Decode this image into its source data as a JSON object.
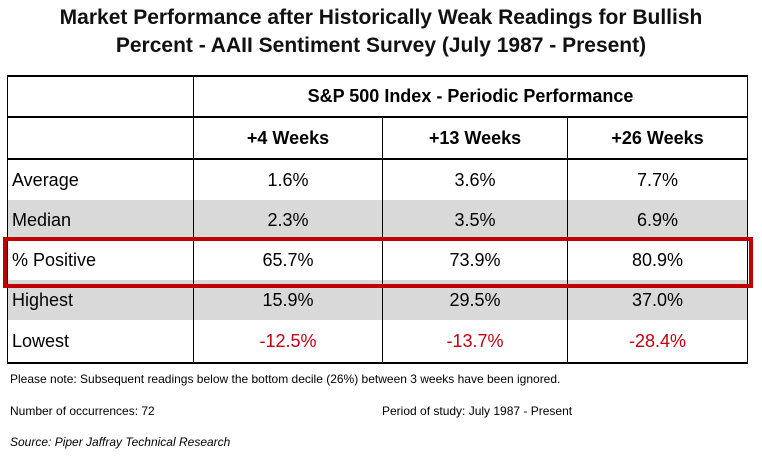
{
  "title": {
    "line1": "Market Performance after Historically Weak Readings for Bullish",
    "line2": "Percent - AAII Sentiment Survey (July 1987 - Present)"
  },
  "table": {
    "group_header": "S&P 500 Index - Periodic Performance",
    "columns": [
      "+4 Weeks",
      "+13 Weeks",
      "+26 Weeks"
    ],
    "rows": [
      {
        "label": "Average",
        "values": [
          "1.6%",
          "3.6%",
          "7.7%"
        ]
      },
      {
        "label": "Median",
        "values": [
          "2.3%",
          "3.5%",
          "6.9%"
        ]
      },
      {
        "label": "% Positive",
        "values": [
          "65.7%",
          "73.9%",
          "80.9%"
        ]
      },
      {
        "label": "Highest",
        "values": [
          "15.9%",
          "29.5%",
          "37.0%"
        ]
      },
      {
        "label": "Lowest",
        "values": [
          "-12.5%",
          "-13.7%",
          "-28.4%"
        ]
      }
    ]
  },
  "notes": {
    "please_note": "Please note: Subsequent readings below the bottom decile (26%) between 3 weeks have been ignored.",
    "occurrences": "Number of occurrences: 72",
    "period": "Period of study: July 1987 - Present",
    "source": "Source: Piper Jaffray Technical Research"
  },
  "colors": {
    "highlight_border": "#c00000",
    "negative_text": "#c0000f",
    "shaded_row": "#d9d9d9"
  }
}
